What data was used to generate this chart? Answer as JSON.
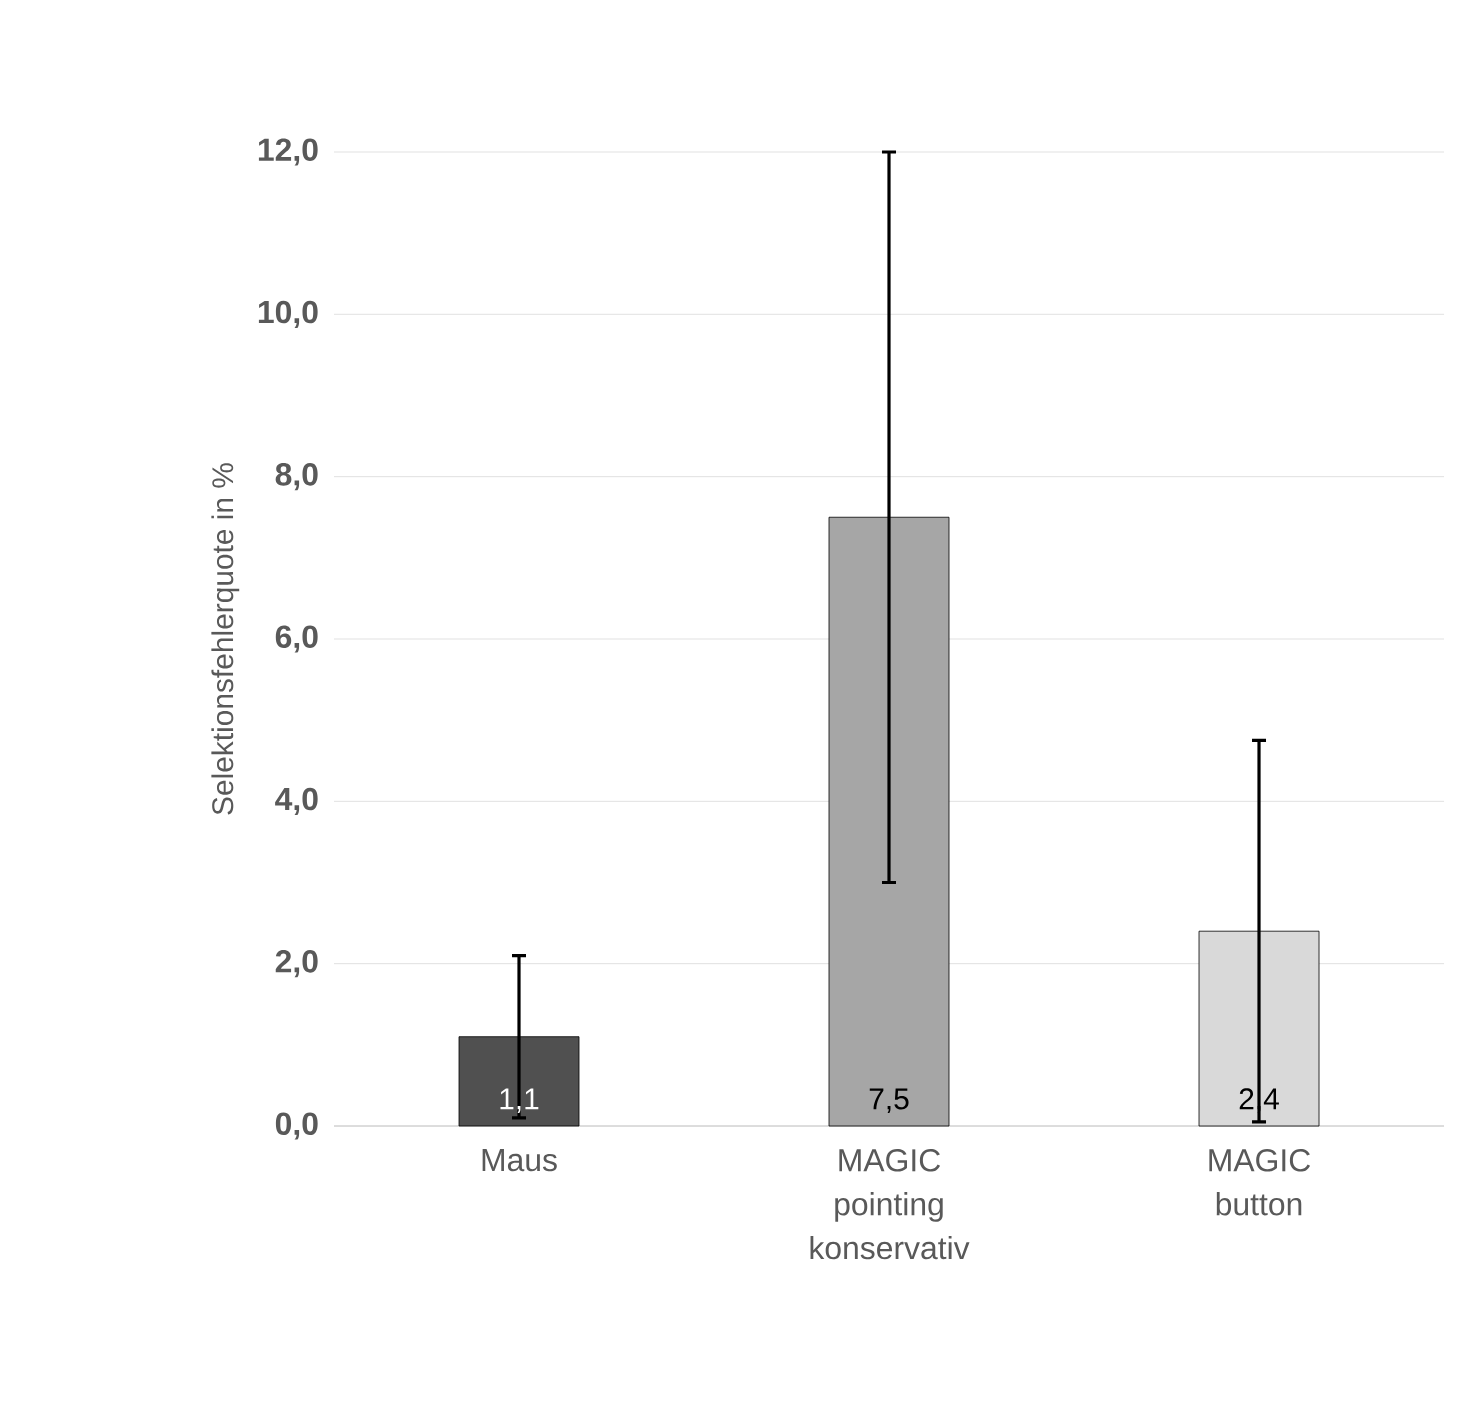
{
  "chart_data": {
    "type": "bar",
    "ylabel": "Selektionsfehlerquote in %",
    "categories": [
      "Maus",
      "MAGIC pointing konservativ",
      "MAGIC button"
    ],
    "values": [
      1.1,
      7.5,
      2.4
    ],
    "colors": [
      "#505050",
      "#a6a6a6",
      "#d9d9d9"
    ],
    "errors": [
      1.0,
      4.5,
      2.35
    ],
    "value_labels": [
      "1,1",
      "7,5",
      "2,4"
    ],
    "ylim": [
      0,
      12
    ],
    "yticks": [
      {
        "value": 0,
        "label": "0,0"
      },
      {
        "value": 2,
        "label": "2,0"
      },
      {
        "value": 4,
        "label": "4,0"
      },
      {
        "value": 6,
        "label": "6,0"
      },
      {
        "value": 8,
        "label": "8,0"
      },
      {
        "value": 10,
        "label": "10,0"
      },
      {
        "value": 12,
        "label": "12,0"
      }
    ],
    "grid": "y"
  }
}
